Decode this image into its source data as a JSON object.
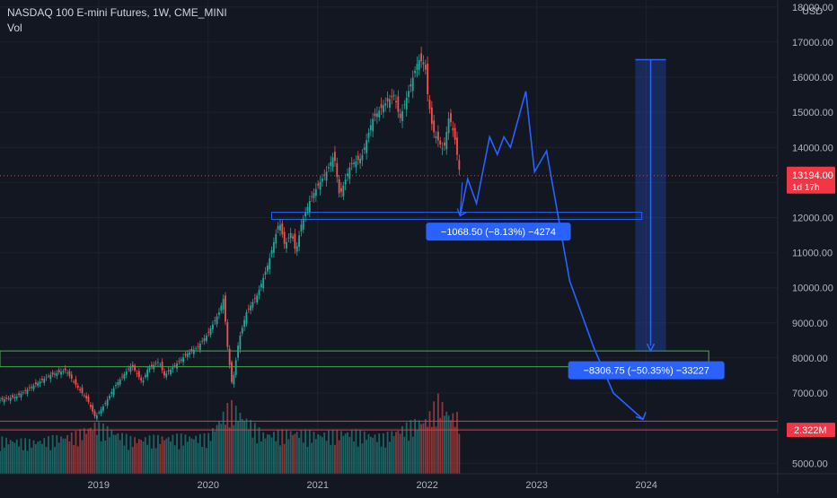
{
  "header": {
    "title": "NASDAQ 100 E-mini Futures, 1W, CME_MINI",
    "volume_label": "Vol"
  },
  "colors": {
    "background": "#131722",
    "grid": "#1e222d",
    "text": "#b2b5be",
    "up": "#26a69a",
    "down": "#ef5350",
    "drawing": "#2962ff",
    "support_box": "#4caf50",
    "resistance_line": "#f23645",
    "price_line": "#f23645"
  },
  "chart_data": {
    "type": "line",
    "symbol": "NASDAQ 100 E-mini Futures",
    "interval": "1W",
    "exchange": "CME_MINI",
    "currency": "USD",
    "ylim": [
      4700,
      18200
    ],
    "xlim": [
      2018.1,
      2025.2
    ],
    "x_ticks": [
      "2019",
      "2020",
      "2021",
      "2022",
      "2023",
      "2024"
    ],
    "y_ticks": [
      "5000.00",
      "6000.00",
      "7000.00",
      "8000.00",
      "9000.00",
      "10000.00",
      "11000.00",
      "12000.00",
      "13000.00",
      "14000.00",
      "15000.00",
      "16000.00",
      "17000.00",
      "18000.00"
    ],
    "last_price": "13194.00",
    "countdown": "1d 17h",
    "volume_value": "2.322M",
    "price_series": {
      "x": [
        2018.1,
        2018.25,
        2018.4,
        2018.55,
        2018.7,
        2018.8,
        2018.9,
        2018.97,
        2019.05,
        2019.15,
        2019.25,
        2019.3,
        2019.4,
        2019.45,
        2019.55,
        2019.6,
        2019.7,
        2019.8,
        2019.9,
        2020.0,
        2020.1,
        2020.14,
        2020.18,
        2020.22,
        2020.28,
        2020.35,
        2020.45,
        2020.55,
        2020.65,
        2020.7,
        2020.76,
        2020.8,
        2020.85,
        2020.93,
        2021.0,
        2021.08,
        2021.15,
        2021.2,
        2021.3,
        2021.4,
        2021.5,
        2021.6,
        2021.7,
        2021.75,
        2021.85,
        2021.92,
        2021.98,
        2022.0,
        2022.05,
        2022.1,
        2022.15,
        2022.2,
        2022.25,
        2022.3
      ],
      "y": [
        6800,
        6900,
        7200,
        7500,
        7650,
        7200,
        6800,
        6300,
        6650,
        7200,
        7600,
        7800,
        7300,
        7700,
        7900,
        7500,
        7800,
        8100,
        8300,
        8700,
        9300,
        9700,
        8200,
        7200,
        8500,
        9300,
        9800,
        10700,
        11900,
        11200,
        11600,
        11000,
        11800,
        12500,
        12900,
        13300,
        13800,
        12600,
        13500,
        13700,
        14800,
        15200,
        15500,
        14800,
        15800,
        16500,
        16400,
        15600,
        14500,
        14200,
        13900,
        14900,
        14300,
        13194
      ]
    },
    "volume_series": {
      "x": [
        2018.1,
        2018.4,
        2018.8,
        2018.97,
        2019.3,
        2019.7,
        2020.0,
        2020.2,
        2020.5,
        2020.8,
        2021.0,
        2021.3,
        2021.6,
        2021.9,
        2022.0,
        2022.1,
        2022.2,
        2022.3
      ],
      "y": [
        1.4,
        1.3,
        1.6,
        2.0,
        1.4,
        1.5,
        1.5,
        2.8,
        1.6,
        1.7,
        1.6,
        1.7,
        1.5,
        2.1,
        2.2,
        3.0,
        2.4,
        2.3
      ]
    },
    "projection": {
      "x": [
        2022.3,
        2022.37,
        2022.45,
        2022.57,
        2022.64,
        2022.7,
        2022.76,
        2022.9,
        2022.98,
        2023.09,
        2023.3,
        2023.52,
        2023.7,
        2023.97
      ],
      "y": [
        12050,
        13100,
        12400,
        14300,
        13800,
        14300,
        14000,
        15600,
        13300,
        13900,
        10200,
        8300,
        7000,
        6250
      ]
    },
    "zones": [
      {
        "kind": "support",
        "x": [
          2018.1,
          2024.57
        ],
        "y": [
          7750,
          8200
        ]
      },
      {
        "kind": "target",
        "x": [
          2020.58,
          2023.96
        ],
        "y": [
          11950,
          12150
        ]
      }
    ],
    "lines": [
      {
        "kind": "resistance",
        "y": 6200
      },
      {
        "kind": "resistance",
        "y": 5950
      },
      {
        "kind": "last_price",
        "y": 13194
      }
    ],
    "measure": {
      "x": [
        2023.9,
        2024.18
      ],
      "y": [
        16500,
        8200
      ]
    },
    "annotations": [
      {
        "text": "−1068.50 (−8.13%) −4274",
        "x": 2022.65,
        "y": 11600
      },
      {
        "text": "−8306.75 (−50.35%) −33227",
        "x": 2024.0,
        "y": 7650
      }
    ]
  }
}
